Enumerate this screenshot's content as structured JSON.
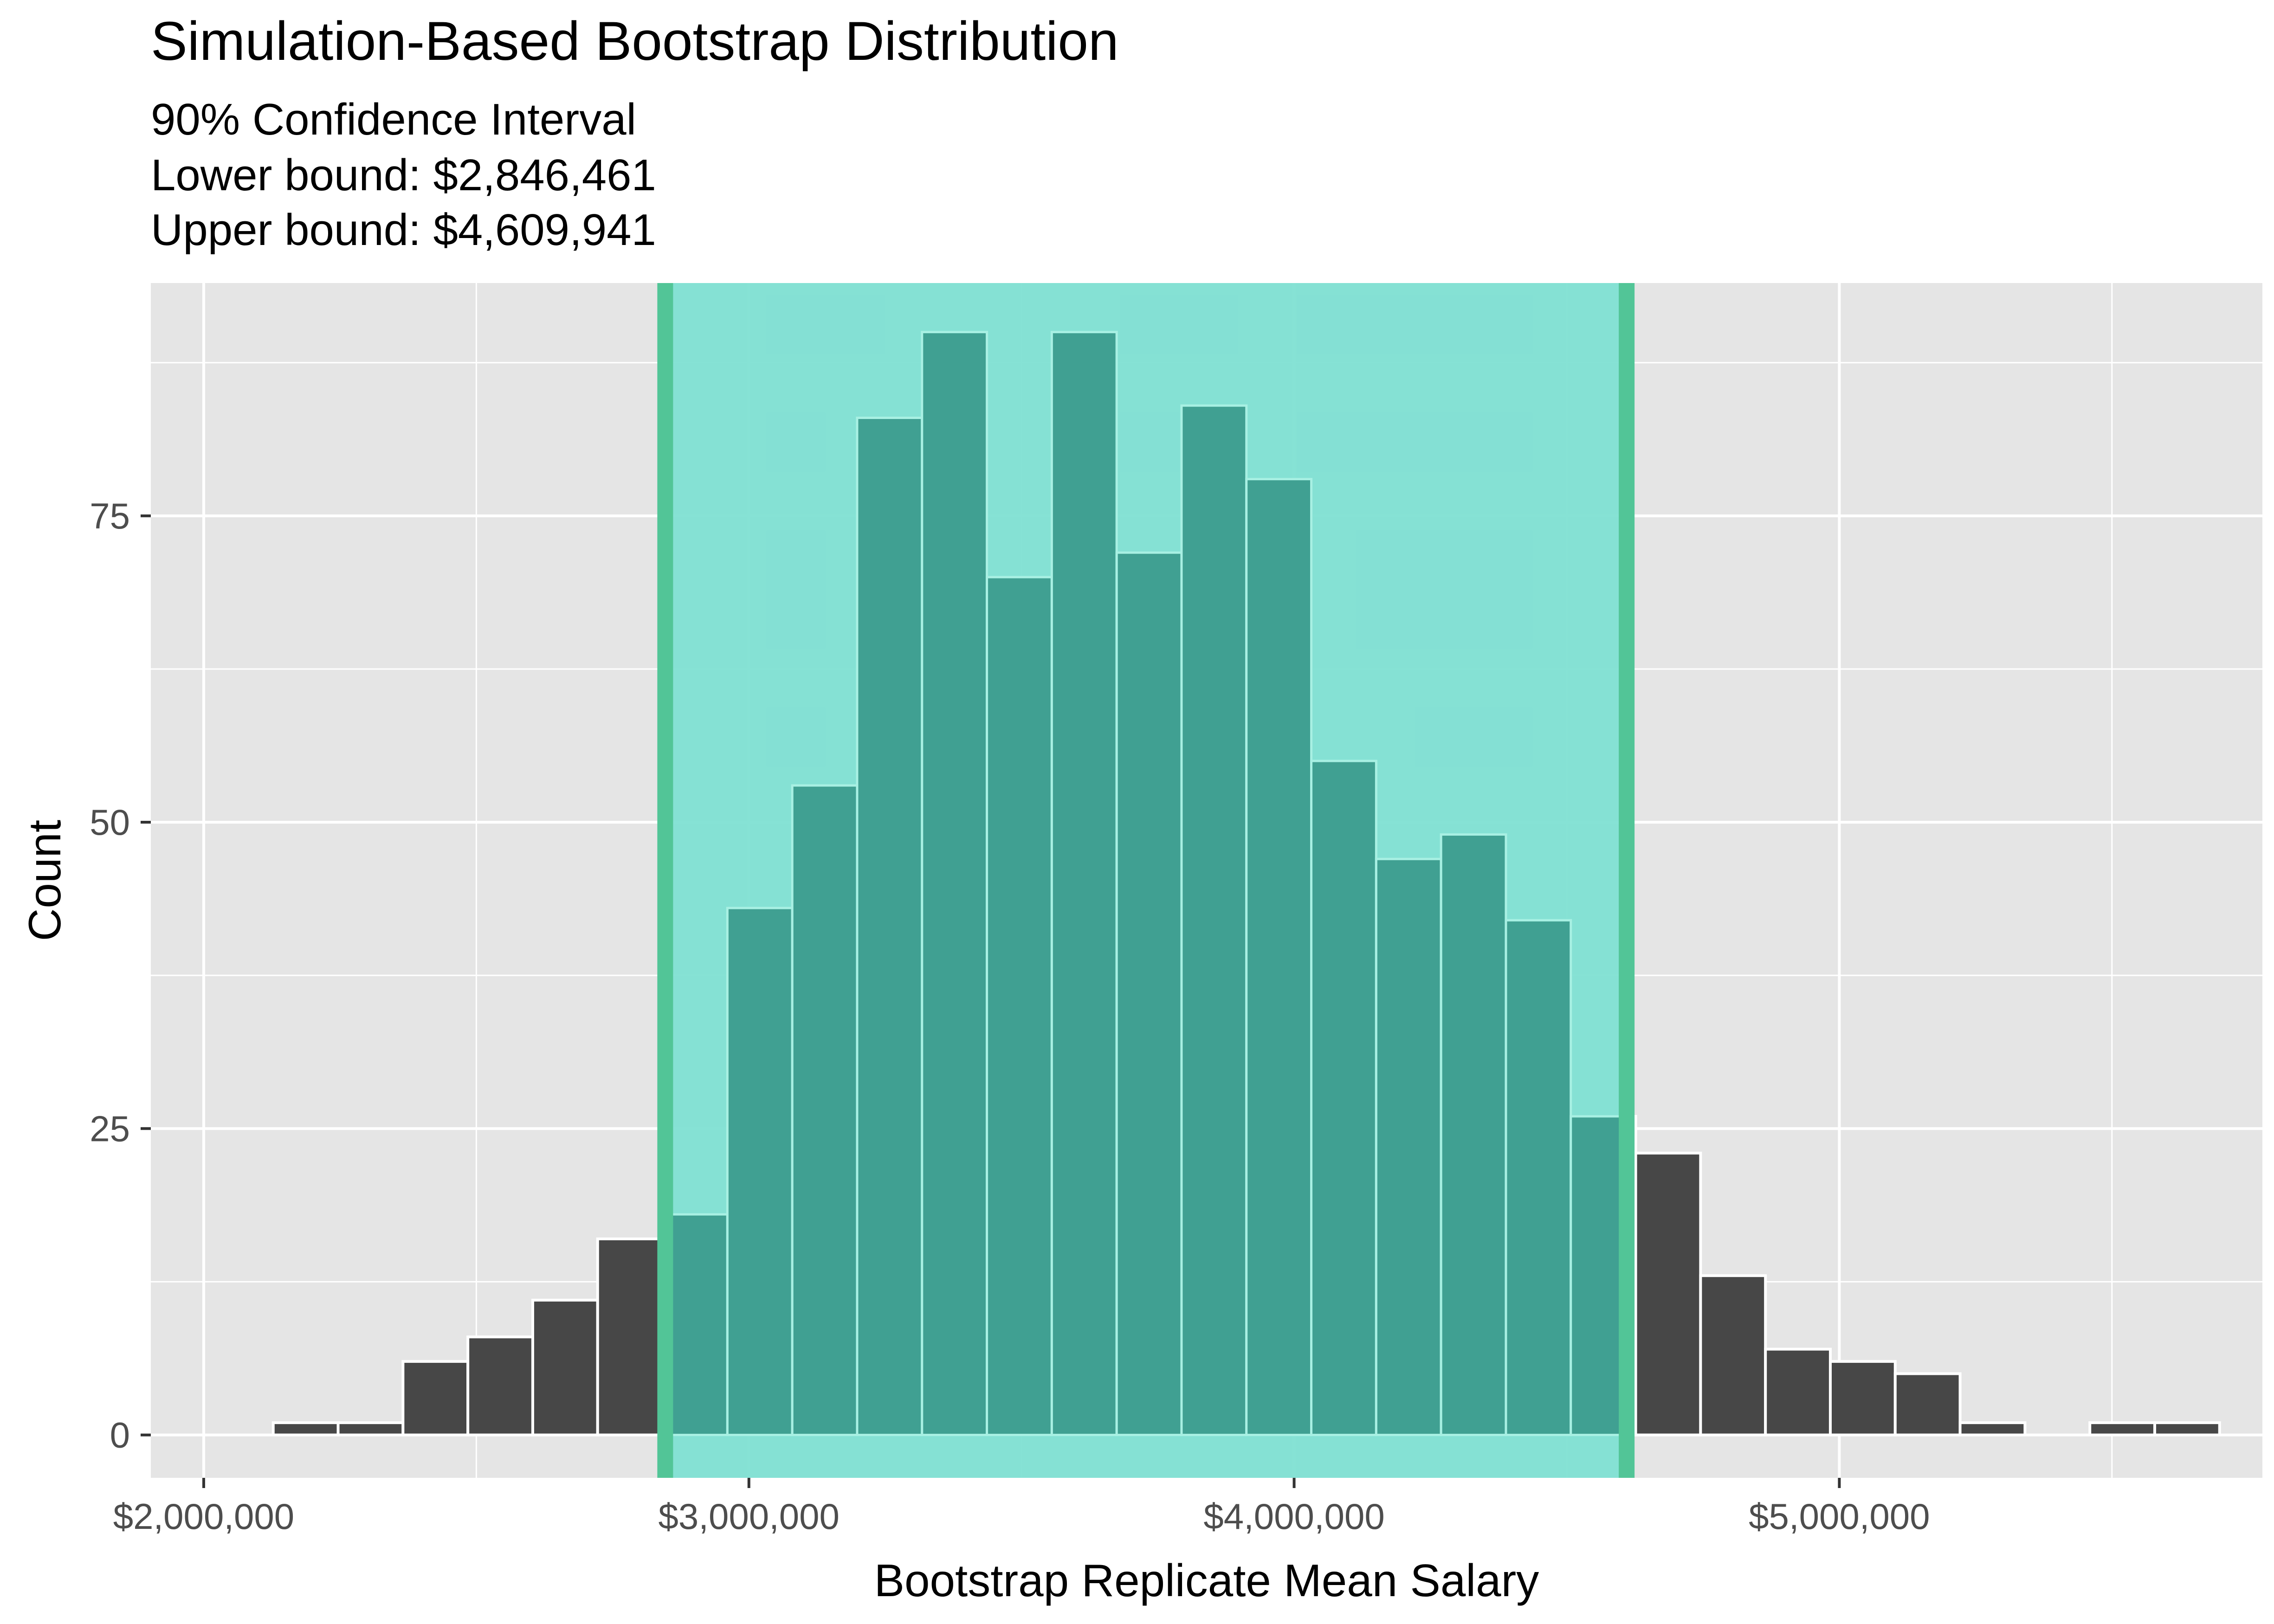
{
  "chart_data": {
    "type": "bar",
    "title": "Simulation-Based Bootstrap Distribution",
    "subtitle_lines": [
      "90% Confidence Interval",
      "Lower bound: $2,846,461",
      "Upper bound: $4,609,941"
    ],
    "xlabel": "Bootstrap Replicate Mean Salary",
    "ylabel": "Count",
    "x_ticks": [
      {
        "value": 2000000,
        "label": "$2,000,000"
      },
      {
        "value": 3000000,
        "label": "$3,000,000"
      },
      {
        "value": 4000000,
        "label": "$4,000,000"
      },
      {
        "value": 5000000,
        "label": "$5,000,000"
      }
    ],
    "y_ticks": [
      {
        "value": 0,
        "label": "0"
      },
      {
        "value": 25,
        "label": "25"
      },
      {
        "value": 50,
        "label": "50"
      },
      {
        "value": 75,
        "label": "75"
      }
    ],
    "xlim": [
      1903000,
      5776000
    ],
    "ylim": [
      -3.5,
      94
    ],
    "bin_width": 119000,
    "bins": [
      {
        "x": 2187000,
        "count": 1
      },
      {
        "x": 2306000,
        "count": 1
      },
      {
        "x": 2425000,
        "count": 6
      },
      {
        "x": 2544000,
        "count": 8
      },
      {
        "x": 2663000,
        "count": 11
      },
      {
        "x": 2782000,
        "count": 16
      },
      {
        "x": 2901000,
        "count": 18
      },
      {
        "x": 3020000,
        "count": 43
      },
      {
        "x": 3139000,
        "count": 53
      },
      {
        "x": 3258000,
        "count": 83
      },
      {
        "x": 3377000,
        "count": 90
      },
      {
        "x": 3496000,
        "count": 70
      },
      {
        "x": 3615000,
        "count": 90
      },
      {
        "x": 3734000,
        "count": 72
      },
      {
        "x": 3853000,
        "count": 84
      },
      {
        "x": 3972000,
        "count": 78
      },
      {
        "x": 4091000,
        "count": 55
      },
      {
        "x": 4210000,
        "count": 47
      },
      {
        "x": 4329000,
        "count": 49
      },
      {
        "x": 4448000,
        "count": 42
      },
      {
        "x": 4567000,
        "count": 26
      },
      {
        "x": 4686000,
        "count": 23
      },
      {
        "x": 4805000,
        "count": 13
      },
      {
        "x": 4924000,
        "count": 7
      },
      {
        "x": 5043000,
        "count": 6
      },
      {
        "x": 5162000,
        "count": 5
      },
      {
        "x": 5281000,
        "count": 1
      },
      {
        "x": 5400000,
        "count": 0
      },
      {
        "x": 5519000,
        "count": 1
      },
      {
        "x": 5638000,
        "count": 1
      }
    ],
    "ci": {
      "lower": 2846461,
      "upper": 4609941
    },
    "grid": true,
    "colors": {
      "panel": "#e5e5e5",
      "grid": "#ffffff",
      "bar_fill": "#474747",
      "bar_outline": "#ffffff",
      "ci_fill": "#7fe0d3",
      "ci_line": "#52c597",
      "bar_in_ci": "#40a092",
      "bar_in_ci_outline": "#a8f0e3",
      "axis_text": "#4d4d4d"
    }
  }
}
